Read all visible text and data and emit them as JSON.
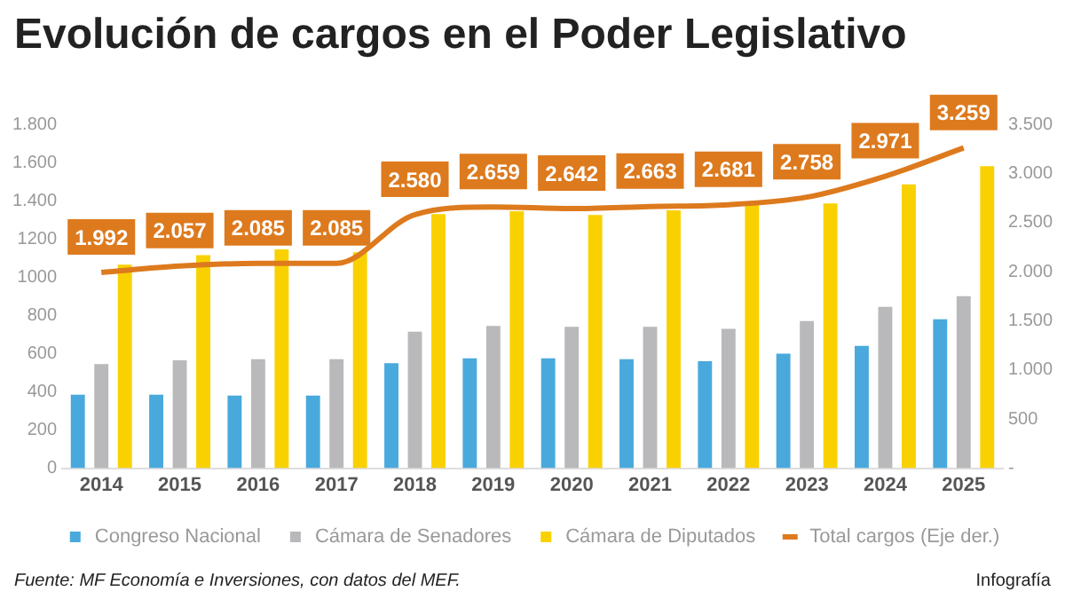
{
  "chart_data": {
    "type": "bar",
    "title": "Evolución de cargos en el Poder Legislativo",
    "categories": [
      "2014",
      "2015",
      "2016",
      "2017",
      "2018",
      "2019",
      "2020",
      "2021",
      "2022",
      "2023",
      "2024",
      "2025"
    ],
    "series": [
      {
        "name": "Congreso Nacional",
        "color": "#4aa9dc",
        "values": [
          385,
          385,
          380,
          380,
          550,
          575,
          575,
          570,
          560,
          600,
          640,
          780
        ]
      },
      {
        "name": "Cámara de Senadores",
        "color": "#b9b9bb",
        "values": [
          545,
          565,
          570,
          570,
          715,
          745,
          740,
          740,
          730,
          770,
          845,
          900
        ]
      },
      {
        "name": "Cámara de Diputados",
        "color": "#f9d100",
        "values": [
          1065,
          1115,
          1145,
          1130,
          1330,
          1345,
          1325,
          1350,
          1380,
          1385,
          1485,
          1580
        ]
      },
      {
        "name": "Total cargos (Eje der.)",
        "type": "line",
        "axis": "y2",
        "color": "#dd7a1e",
        "values": [
          1992,
          2057,
          2085,
          2085,
          2580,
          2659,
          2642,
          2663,
          2681,
          2758,
          2971,
          3259
        ],
        "value_labels": [
          "1.992",
          "2.057",
          "2.085",
          "2.085",
          "2.580",
          "2.659",
          "2.642",
          "2.663",
          "2.681",
          "2.758",
          "2.971",
          "3.259"
        ]
      }
    ],
    "ylim": [
      0,
      1800
    ],
    "yticks": [
      0,
      200,
      400,
      600,
      800,
      1000,
      1200,
      {
        "value": 1400,
        "label": "1.400"
      },
      {
        "value": 1600,
        "label": "1.600"
      },
      {
        "value": 1800,
        "label": "1.800"
      }
    ],
    "y2lim": [
      0,
      3500
    ],
    "y2ticks": [
      {
        "value": 0,
        "label": "-"
      },
      500,
      {
        "value": 1000,
        "label": "1.000"
      },
      {
        "value": 1500,
        "label": "1.500"
      },
      {
        "value": 2000,
        "label": "2.000"
      },
      {
        "value": 2500,
        "label": "2.500"
      },
      {
        "value": 3000,
        "label": "3.000"
      },
      {
        "value": 3500,
        "label": "3.500"
      }
    ],
    "legend": "bottom",
    "grid": false,
    "marker": "none",
    "annotations": [
      "Fuente: MF Economía e Inversiones, con datos del MEF.",
      "Infografía"
    ]
  }
}
